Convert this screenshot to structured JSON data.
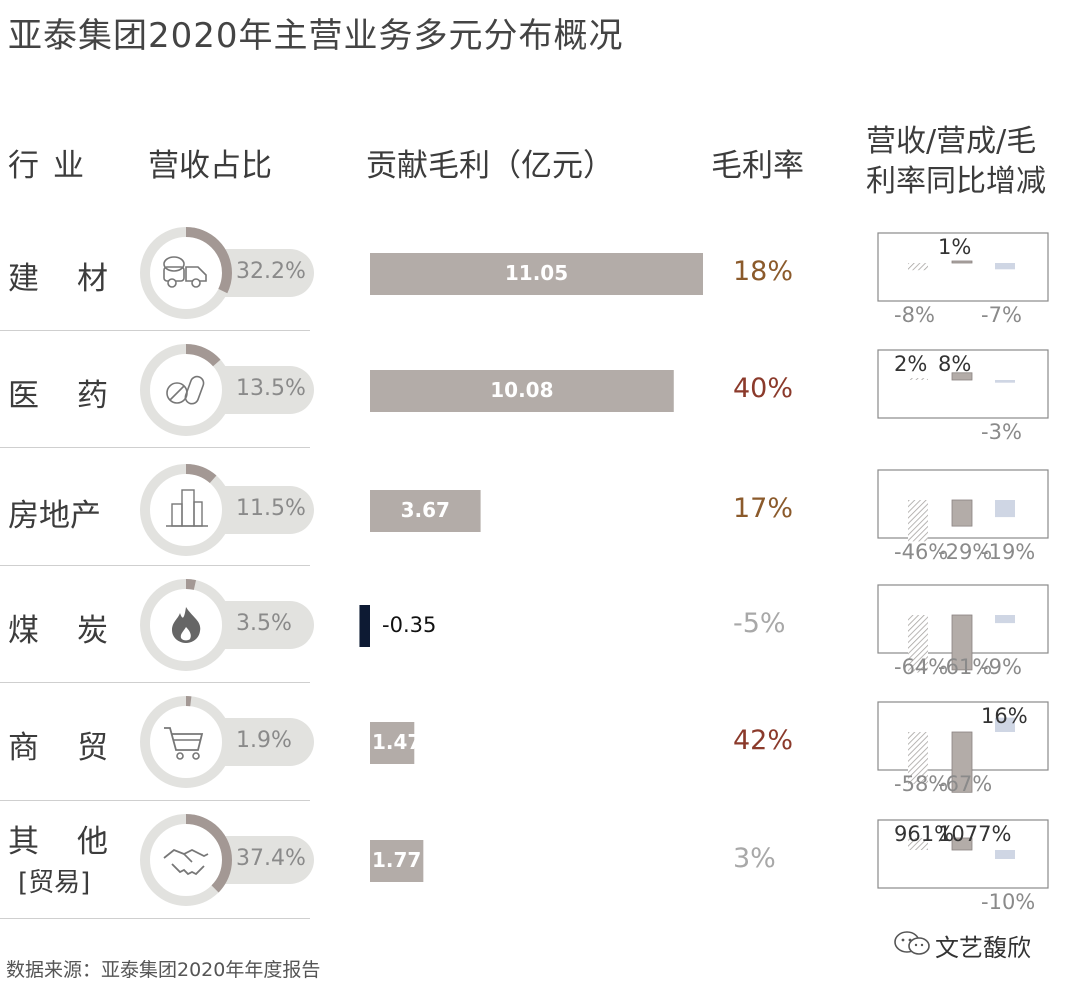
{
  "title": "亚泰集团2020年主营业务多元分布概况",
  "headers": {
    "industry": "行业",
    "revenue_share": "营收占比",
    "gross_profit": "贡献毛利（亿元）",
    "margin": "毛利率",
    "yoy_line1": "营收/营成/毛",
    "yoy_line2": "利率同比增减"
  },
  "rows": [
    {
      "label": "建材",
      "label_sub": "",
      "icon": "cement-mixer-truck-icon",
      "share_text": "32.2%",
      "profit_text": "11.05",
      "margin_text": "18%",
      "margin_color": "#8b5a2b",
      "yoy": {
        "revenue": "-8%",
        "cost": "1%",
        "margin": "-7%"
      }
    },
    {
      "label": "医药",
      "label_sub": "",
      "icon": "pill-capsule-icon",
      "share_text": "13.5%",
      "profit_text": "10.08",
      "margin_text": "40%",
      "margin_color": "#8b3a2b",
      "yoy": {
        "revenue": "2%",
        "cost": "8%",
        "margin": "-3%"
      }
    },
    {
      "label": "房地产",
      "label_sub": "",
      "icon": "buildings-icon",
      "share_text": "11.5%",
      "profit_text": "3.67",
      "margin_text": "17%",
      "margin_color": "#8b5a2b",
      "yoy": {
        "revenue": "-46%",
        "cost": "-29%",
        "margin": "-19%"
      }
    },
    {
      "label": "煤炭",
      "label_sub": "",
      "icon": "flame-icon",
      "share_text": "3.5%",
      "profit_text": "-0.35",
      "margin_text": "-5%",
      "margin_color": "#a8a8a8",
      "yoy": {
        "revenue": "-64%",
        "cost": "-61%",
        "margin": "-9%"
      }
    },
    {
      "label": "商贸",
      "label_sub": "",
      "icon": "shopping-cart-icon",
      "share_text": "1.9%",
      "profit_text": "1.47",
      "margin_text": "42%",
      "margin_color": "#8b3a2b",
      "yoy": {
        "revenue": "-58%",
        "cost": "-67%",
        "margin": "16%"
      }
    },
    {
      "label": "其他",
      "label_sub": "[贸易]",
      "icon": "handshake-icon",
      "share_text": "37.4%",
      "profit_text": "1.77",
      "margin_text": "3%",
      "margin_color": "#a8a8a8",
      "yoy": {
        "revenue": "961%",
        "cost": "1077%",
        "margin": "-10%"
      }
    }
  ],
  "chart_data": {
    "type": "bar",
    "categories": [
      "建材",
      "医药",
      "房地产",
      "煤炭",
      "商贸",
      "其他 [贸易]"
    ],
    "series": [
      {
        "name": "营收占比",
        "values": [
          32.2,
          13.5,
          11.5,
          3.5,
          1.9,
          37.4
        ],
        "unit": "%"
      },
      {
        "name": "贡献毛利（亿元）",
        "values": [
          11.05,
          10.08,
          3.67,
          -0.35,
          1.47,
          1.77
        ]
      },
      {
        "name": "毛利率",
        "values": [
          18,
          40,
          17,
          -5,
          42,
          3
        ],
        "unit": "%"
      },
      {
        "name": "营收",
        "values": [
          -8,
          2,
          -46,
          -64,
          -58,
          961
        ],
        "unit": "%"
      },
      {
        "name": "营成",
        "values": [
          1,
          8,
          -29,
          -61,
          -67,
          1077
        ],
        "unit": "%"
      },
      {
        "name": "毛利率",
        "values": [
          -7,
          -3,
          -19,
          -9,
          16,
          -10
        ],
        "unit": "%"
      }
    ],
    "title": "亚泰集团2020年主营业务多元分布概况"
  },
  "colors": {
    "bar": "#b3aca8",
    "bar_negative": "#0d1a33",
    "donut_track": "#e2e2df",
    "donut_fill": "#a39894",
    "revenue_hatch": "#a7a4a2",
    "cost_fill": "#b3aca8",
    "margin_fill": "#cfd6e4",
    "text_label": "#8a8a8a"
  },
  "source": "数据来源：亚泰集团2020年年度报告",
  "watermark": "文艺馥欣"
}
